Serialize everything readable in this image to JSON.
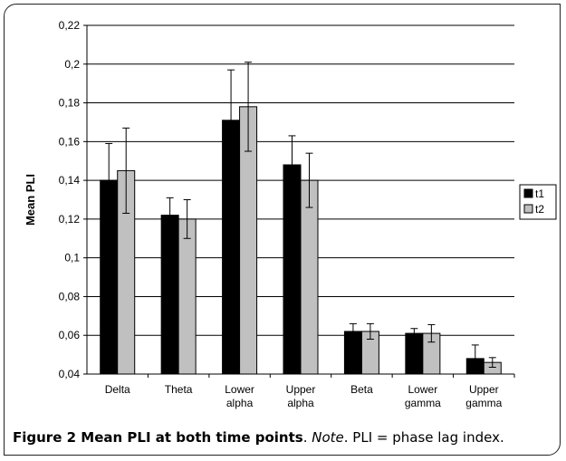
{
  "chart_data": {
    "type": "bar",
    "ylabel": "Mean PLI",
    "xlabel": "",
    "ylim": [
      0.04,
      0.22
    ],
    "yticks": [
      0.04,
      0.06,
      0.08,
      0.1,
      0.12,
      0.14,
      0.16,
      0.18,
      0.2,
      0.22
    ],
    "ytick_labels": [
      "0,04",
      "0,06",
      "0,08",
      "0,1",
      "0,12",
      "0,14",
      "0,16",
      "0,18",
      "0,2",
      "0,22"
    ],
    "categories": [
      [
        "Delta"
      ],
      [
        "Theta"
      ],
      [
        "Lower",
        "alpha"
      ],
      [
        "Upper",
        "alpha"
      ],
      [
        "Beta"
      ],
      [
        "Lower",
        "gamma"
      ],
      [
        "Upper",
        "gamma"
      ]
    ],
    "grid": true,
    "legend": "right",
    "series": [
      {
        "name": "t1",
        "color": "#000000",
        "values": [
          0.14,
          0.122,
          0.171,
          0.148,
          0.062,
          0.061,
          0.048
        ],
        "error": [
          0.019,
          0.009,
          0.026,
          0.015,
          0.004,
          0.0025,
          0.007
        ]
      },
      {
        "name": "t2",
        "color": "#c0c0c0",
        "values": [
          0.145,
          0.12,
          0.178,
          0.14,
          0.062,
          0.061,
          0.046
        ],
        "error": [
          0.022,
          0.01,
          0.023,
          0.014,
          0.004,
          0.0045,
          0.0025
        ]
      }
    ]
  },
  "caption": {
    "label": "Figure 2",
    "title": "Mean PLI at both time points",
    "note_label": "Note",
    "note_text": "PLI = phase lag index."
  }
}
